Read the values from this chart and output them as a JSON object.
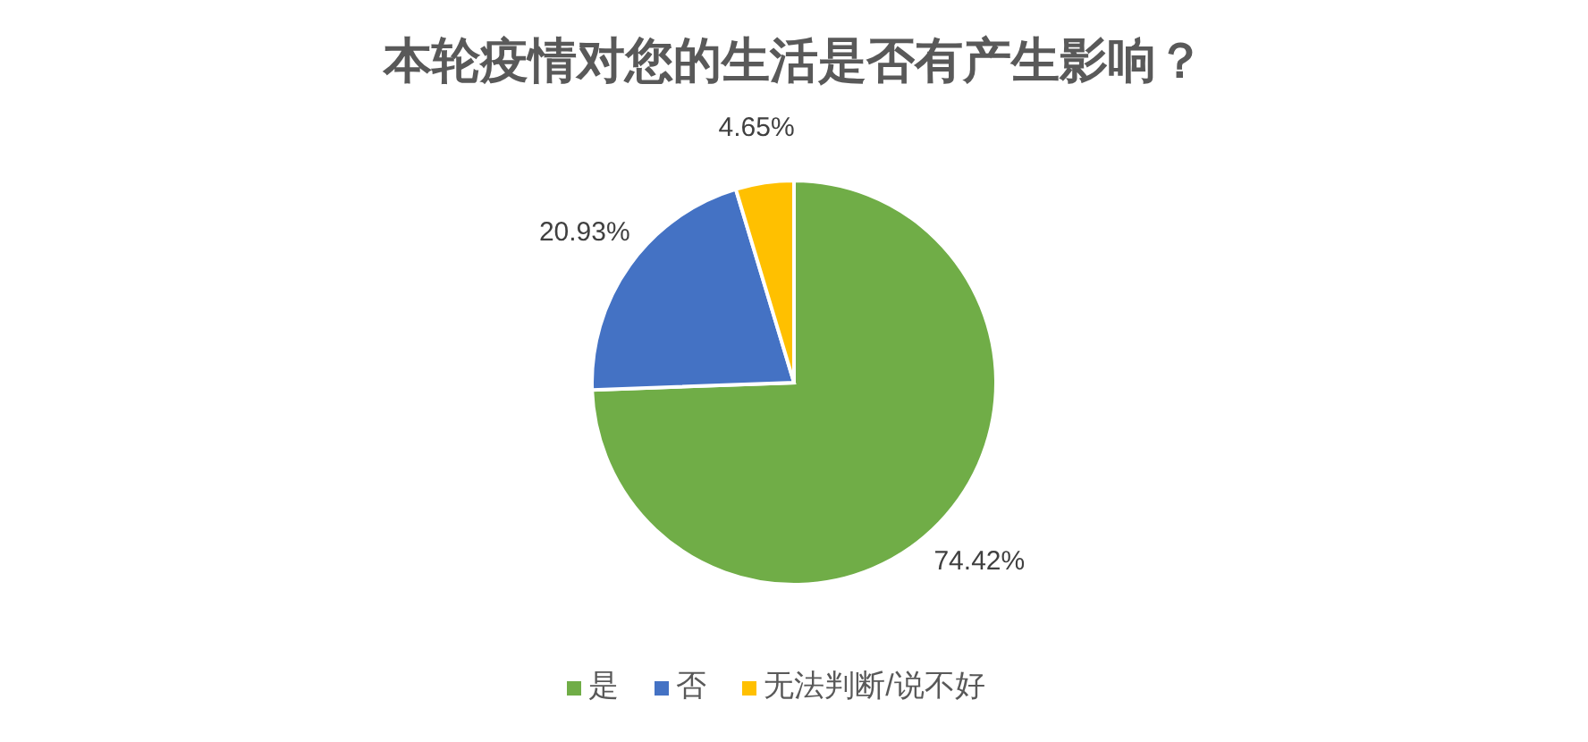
{
  "chart_data": {
    "type": "pie",
    "title": "本轮疫情对您的生活是否有产生影响？",
    "categories": [
      "是",
      "否",
      "无法判断/说不好"
    ],
    "values": [
      74.42,
      20.93,
      4.65
    ],
    "colors": [
      "#70ad47",
      "#4472c4",
      "#ffc000"
    ],
    "value_labels": [
      "74.42%",
      "20.93%",
      "4.65%"
    ],
    "legend": "bottom"
  }
}
